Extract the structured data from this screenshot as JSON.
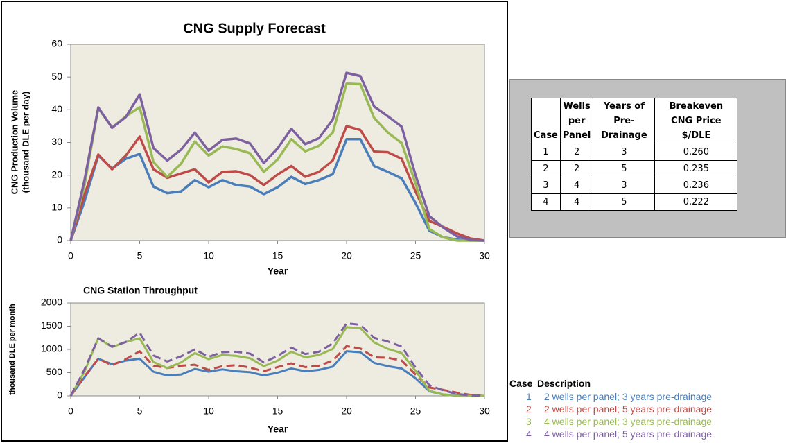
{
  "chart_data": [
    {
      "type": "line",
      "title": "CNG Supply Forecast",
      "xlabel": "Year",
      "ylabel": [
        "CNG Production Volume",
        "(thousand DLE per day)"
      ],
      "x": [
        0,
        1,
        2,
        3,
        4,
        5,
        6,
        7,
        8,
        9,
        10,
        11,
        12,
        13,
        14,
        15,
        16,
        17,
        18,
        19,
        20,
        21,
        22,
        23,
        24,
        25,
        26,
        27,
        28,
        29,
        30
      ],
      "xlim": [
        0,
        30
      ],
      "xticks": [
        0,
        5,
        10,
        15,
        20,
        25,
        30
      ],
      "ylim": [
        0,
        60
      ],
      "yticks": [
        0,
        10,
        20,
        30,
        40,
        50,
        60
      ],
      "grid": false,
      "series": [
        {
          "color": "#4a7ebb",
          "dashed": false,
          "values": [
            0,
            12,
            26,
            22,
            25,
            26.5,
            16.5,
            14.5,
            15,
            18.5,
            16.3,
            18.5,
            17,
            16.5,
            14.2,
            16.3,
            19.5,
            17.3,
            18.5,
            20.3,
            31,
            31,
            22.8,
            21,
            19,
            11.5,
            3,
            1,
            0.3,
            0,
            0
          ]
        },
        {
          "color": "#be4b48",
          "dashed": false,
          "values": [
            0,
            14,
            26.3,
            21.8,
            26,
            31.8,
            21.8,
            19.2,
            20.5,
            21.8,
            17.8,
            21,
            21.2,
            20,
            17,
            20.2,
            22.8,
            19.5,
            21,
            24.5,
            35,
            33.8,
            27.2,
            27,
            25,
            15,
            6,
            4.2,
            2.2,
            0.6,
            0
          ]
        },
        {
          "color": "#98b954",
          "dashed": false,
          "values": [
            0,
            17,
            40.5,
            34.5,
            38,
            40.8,
            24,
            19.5,
            23.5,
            30.3,
            26,
            28.8,
            28,
            26.7,
            21,
            24.8,
            31,
            27.3,
            29,
            33,
            48,
            47.8,
            37.5,
            33,
            29.8,
            17.5,
            3.5,
            1,
            0,
            0,
            0
          ]
        },
        {
          "color": "#7d60a0",
          "dashed": false,
          "values": [
            0,
            18.5,
            40.7,
            34.5,
            37.8,
            44.7,
            28.3,
            24.5,
            27.8,
            33,
            27.5,
            30.8,
            31.2,
            29.7,
            23.7,
            28.2,
            34.2,
            29.5,
            31.3,
            37,
            51.3,
            50.3,
            41,
            38,
            34.8,
            20,
            7.5,
            4,
            1.3,
            0.2,
            0
          ]
        }
      ]
    },
    {
      "type": "line",
      "title": "CNG Station Throughput",
      "xlabel": "Year",
      "ylabel": [
        "thousand DLE per month"
      ],
      "x": [
        0,
        1,
        2,
        3,
        4,
        5,
        6,
        7,
        8,
        9,
        10,
        11,
        12,
        13,
        14,
        15,
        16,
        17,
        18,
        19,
        20,
        21,
        22,
        23,
        24,
        25,
        26,
        27,
        28,
        29,
        30
      ],
      "xlim": [
        0,
        30
      ],
      "xticks": [
        0,
        5,
        10,
        15,
        20,
        25,
        30
      ],
      "ylim": [
        0,
        2000
      ],
      "yticks": [
        0,
        500,
        1000,
        1500,
        2000
      ],
      "grid": false,
      "series": [
        {
          "color": "#4a7ebb",
          "dashed": false,
          "values": [
            0,
            400,
            800,
            680,
            760,
            800,
            520,
            440,
            460,
            580,
            520,
            570,
            530,
            510,
            440,
            500,
            590,
            530,
            560,
            630,
            960,
            940,
            710,
            640,
            590,
            380,
            100,
            30,
            10,
            0,
            0
          ]
        },
        {
          "color": "#be4b48",
          "dashed": true,
          "values": [
            0,
            420,
            800,
            660,
            790,
            960,
            650,
            600,
            650,
            670,
            560,
            640,
            660,
            610,
            530,
            620,
            700,
            620,
            650,
            760,
            1070,
            1020,
            830,
            820,
            760,
            460,
            180,
            130,
            70,
            20,
            0
          ]
        },
        {
          "color": "#98b954",
          "dashed": false,
          "values": [
            0,
            520,
            1240,
            1050,
            1160,
            1240,
            730,
            600,
            720,
            920,
            790,
            880,
            860,
            810,
            640,
            760,
            950,
            830,
            880,
            1010,
            1480,
            1460,
            1150,
            1010,
            920,
            540,
            110,
            30,
            0,
            0,
            0
          ]
        },
        {
          "color": "#7d60a0",
          "dashed": true,
          "values": [
            0,
            570,
            1240,
            1060,
            1160,
            1360,
            870,
            740,
            850,
            1000,
            840,
            940,
            950,
            910,
            720,
            860,
            1040,
            900,
            950,
            1130,
            1560,
            1530,
            1250,
            1170,
            1060,
            610,
            230,
            120,
            40,
            10,
            0
          ]
        }
      ]
    }
  ],
  "cases_table": {
    "header": [
      "Case",
      "Wells per Panel",
      "Years of Pre-Drainage",
      "Breakeven CNG Price $/DLE"
    ],
    "rows": [
      [
        "1",
        "2",
        "3",
        "0.260"
      ],
      [
        "2",
        "2",
        "5",
        "0.235"
      ],
      [
        "3",
        "4",
        "3",
        "0.236"
      ],
      [
        "4",
        "4",
        "5",
        "0.222"
      ]
    ]
  },
  "legend_table": {
    "header": [
      "Case",
      "Description"
    ],
    "rows": [
      {
        "case": "1",
        "description": "2 wells per panel; 3 years pre-drainage",
        "color": "#4a7ebb"
      },
      {
        "case": "2",
        "description": "2 wells per panel; 5 years pre-drainage",
        "color": "#be4b48"
      },
      {
        "case": "3",
        "description": "4 wells per panel; 3 years pre-drainage",
        "color": "#98b954"
      },
      {
        "case": "4",
        "description": "4 wells per panel; 5 years pre-drainage",
        "color": "#7d60a0"
      }
    ]
  }
}
